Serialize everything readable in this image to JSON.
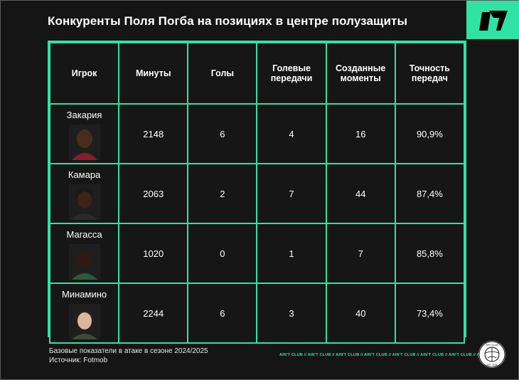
{
  "title": "Конкуренты Поля Погба на позициях в центре полузащиты",
  "colors": {
    "accent": "#2fe3a5",
    "background": "#151515"
  },
  "table": {
    "headers": [
      "Игрок",
      "Минуты",
      "Голы",
      "Голевые передачи",
      "Созданные моменты",
      "Точность передач"
    ],
    "rows": [
      {
        "player": "Закария",
        "minutes": "2148",
        "goals": "6",
        "assists": "4",
        "chances": "16",
        "accuracy": "90,9%"
      },
      {
        "player": "Камара",
        "minutes": "2063",
        "goals": "2",
        "assists": "7",
        "chances": "44",
        "accuracy": "87,4%"
      },
      {
        "player": "Магасса",
        "minutes": "1020",
        "goals": "0",
        "assists": "1",
        "chances": "7",
        "accuracy": "85,8%"
      },
      {
        "player": "Минамино",
        "minutes": "2244",
        "goals": "6",
        "assists": "3",
        "chances": "40",
        "accuracy": "73,4%"
      }
    ]
  },
  "footer": {
    "line1": "Базовые показатели в атаке в сезоне 2024/2025",
    "line2": "Источник: Fotmob",
    "ticker": "AIN'T CLUB // AIN'T CLUB // AIN'T CLUB // AIN'T CLUB // AIN'T CLUB // AIN'T CLUB // AIN'T CLUB // AIN'T CLUB"
  },
  "badge": {
    "top_text": "AIN'T CLUB",
    "bottom_text": "EST. 2024"
  }
}
